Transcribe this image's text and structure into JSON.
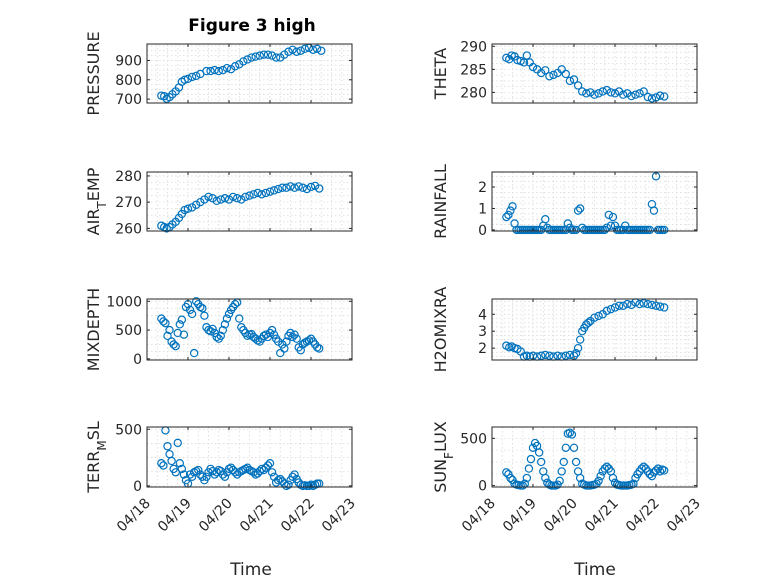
{
  "figure": {
    "title": "Figure 3 high",
    "xlabel": "Time"
  },
  "colors": {
    "marker": "#0072BD",
    "axis": "#262626",
    "grid": "#d9d9d9"
  },
  "chart_data": [
    {
      "type": "scatter",
      "ylabel": "PRESSURE",
      "xlim": [
        0,
        5
      ],
      "ylim": [
        680,
        985
      ],
      "yticks": [
        700,
        800,
        900
      ],
      "x": [
        0.35,
        0.42,
        0.48,
        0.55,
        0.62,
        0.7,
        0.78,
        0.85,
        0.92,
        1.0,
        1.1,
        1.2,
        1.3,
        1.45,
        1.55,
        1.65,
        1.75,
        1.85,
        1.95,
        2.05,
        2.15,
        2.25,
        2.35,
        2.45,
        2.55,
        2.65,
        2.75,
        2.85,
        2.95,
        3.05,
        3.15,
        3.25,
        3.35,
        3.45,
        3.55,
        3.65,
        3.75,
        3.85,
        3.95,
        4.05,
        4.15,
        4.25
      ],
      "y": [
        718,
        715,
        702,
        710,
        725,
        740,
        760,
        790,
        800,
        805,
        815,
        820,
        830,
        845,
        845,
        850,
        845,
        850,
        860,
        855,
        870,
        880,
        895,
        905,
        915,
        920,
        925,
        930,
        930,
        925,
        915,
        915,
        930,
        945,
        955,
        945,
        950,
        960,
        965,
        955,
        960,
        950
      ]
    },
    {
      "type": "scatter",
      "ylabel": "THETA",
      "xlim": [
        0,
        5
      ],
      "ylim": [
        277.7,
        290.5
      ],
      "yticks": [
        280,
        285,
        290
      ],
      "x": [
        0.35,
        0.42,
        0.48,
        0.55,
        0.62,
        0.7,
        0.78,
        0.85,
        0.92,
        1.0,
        1.1,
        1.2,
        1.3,
        1.4,
        1.5,
        1.6,
        1.7,
        1.8,
        1.9,
        2.0,
        2.1,
        2.2,
        2.3,
        2.4,
        2.5,
        2.6,
        2.7,
        2.8,
        2.9,
        3.0,
        3.1,
        3.2,
        3.3,
        3.4,
        3.5,
        3.6,
        3.7,
        3.8,
        3.9,
        4.0,
        4.1,
        4.2
      ],
      "y": [
        287.5,
        287.2,
        288.0,
        287.8,
        287.0,
        286.8,
        286.5,
        288.0,
        286.5,
        285.5,
        285.0,
        284.2,
        284.8,
        283.5,
        283.8,
        284.2,
        285.0,
        284.0,
        282.5,
        282.8,
        281.5,
        280.2,
        279.8,
        280.0,
        279.5,
        279.8,
        280.2,
        280.5,
        280.0,
        279.8,
        280.2,
        279.5,
        279.8,
        279.2,
        279.5,
        279.8,
        280.2,
        279.0,
        278.7,
        278.9,
        279.3,
        279.1
      ]
    },
    {
      "type": "scatter",
      "ylabel": "AIR_TEMP",
      "xlim": [
        0,
        5
      ],
      "ylim": [
        259,
        281.5
      ],
      "yticks": [
        260,
        270,
        280
      ],
      "x": [
        0.35,
        0.42,
        0.48,
        0.55,
        0.62,
        0.7,
        0.78,
        0.85,
        0.92,
        1.0,
        1.1,
        1.2,
        1.3,
        1.4,
        1.5,
        1.6,
        1.7,
        1.8,
        1.9,
        2.0,
        2.1,
        2.2,
        2.3,
        2.4,
        2.5,
        2.6,
        2.7,
        2.8,
        2.9,
        3.0,
        3.1,
        3.2,
        3.3,
        3.4,
        3.5,
        3.6,
        3.7,
        3.8,
        3.9,
        4.0,
        4.1,
        4.2
      ],
      "y": [
        261,
        260.5,
        260,
        260.5,
        261.5,
        262.5,
        264,
        265.5,
        267,
        267.5,
        268,
        269,
        270,
        271,
        272,
        271.5,
        270.5,
        271,
        271.5,
        271,
        272,
        271.5,
        271,
        272,
        272.5,
        273,
        273.5,
        273,
        273.5,
        274,
        274.5,
        275,
        275.5,
        275.5,
        276,
        275.5,
        276,
        275.5,
        275,
        275.8,
        276.2,
        275.2
      ]
    },
    {
      "type": "scatter",
      "ylabel": "RAINFALL",
      "xlim": [
        0,
        5
      ],
      "ylim": [
        -0.05,
        2.7
      ],
      "yticks": [
        0,
        1,
        2
      ],
      "x": [
        0.35,
        0.4,
        0.45,
        0.5,
        0.55,
        0.6,
        0.65,
        0.7,
        0.75,
        0.8,
        0.85,
        0.9,
        0.95,
        1.0,
        1.05,
        1.1,
        1.15,
        1.2,
        1.25,
        1.3,
        1.35,
        1.4,
        1.45,
        1.5,
        1.55,
        1.6,
        1.65,
        1.7,
        1.75,
        1.8,
        1.85,
        1.9,
        1.95,
        2.0,
        2.05,
        2.1,
        2.15,
        2.2,
        2.25,
        2.3,
        2.35,
        2.4,
        2.45,
        2.5,
        2.55,
        2.6,
        2.65,
        2.7,
        2.75,
        2.8,
        2.85,
        2.9,
        2.95,
        3.0,
        3.05,
        3.1,
        3.15,
        3.2,
        3.25,
        3.3,
        3.35,
        3.4,
        3.45,
        3.5,
        3.55,
        3.6,
        3.65,
        3.7,
        3.75,
        3.8,
        3.85,
        3.9,
        3.95,
        4.0,
        4.05,
        4.1,
        4.15,
        4.2
      ],
      "y": [
        0.6,
        0.7,
        0.9,
        1.1,
        0.3,
        0,
        0,
        0,
        0,
        0,
        0,
        0,
        0,
        0,
        0,
        0,
        0,
        0,
        0.2,
        0.5,
        0.1,
        0,
        0,
        0,
        0,
        0,
        0,
        0,
        0,
        0,
        0.3,
        0.1,
        0,
        0,
        0,
        0.9,
        1.0,
        0.1,
        0,
        0,
        0,
        0,
        0,
        0,
        0,
        0,
        0,
        0,
        0,
        0.1,
        0.7,
        0.2,
        0.6,
        0.2,
        0,
        0,
        0,
        0,
        0.2,
        0,
        0,
        0,
        0,
        0,
        0,
        0,
        0,
        0,
        0,
        0,
        0,
        1.2,
        0.9,
        2.5,
        0,
        0,
        0,
        0
      ]
    },
    {
      "type": "scatter",
      "ylabel": "MIXDEPTH",
      "xlim": [
        0,
        5
      ],
      "ylim": [
        -20,
        1040
      ],
      "yticks": [
        0,
        500,
        1000
      ],
      "x": [
        0.35,
        0.4,
        0.45,
        0.5,
        0.55,
        0.6,
        0.65,
        0.7,
        0.75,
        0.8,
        0.85,
        0.9,
        0.95,
        1.0,
        1.05,
        1.1,
        1.15,
        1.2,
        1.25,
        1.3,
        1.35,
        1.4,
        1.45,
        1.5,
        1.55,
        1.6,
        1.65,
        1.7,
        1.75,
        1.8,
        1.85,
        1.9,
        1.95,
        2.0,
        2.05,
        2.1,
        2.15,
        2.2,
        2.25,
        2.3,
        2.35,
        2.4,
        2.45,
        2.5,
        2.55,
        2.6,
        2.65,
        2.7,
        2.75,
        2.8,
        2.85,
        2.9,
        2.95,
        3.0,
        3.05,
        3.1,
        3.15,
        3.2,
        3.25,
        3.3,
        3.35,
        3.4,
        3.45,
        3.5,
        3.55,
        3.6,
        3.65,
        3.7,
        3.75,
        3.8,
        3.85,
        3.9,
        3.95,
        4.0,
        4.05,
        4.1,
        4.15,
        4.2
      ],
      "y": [
        700,
        650,
        620,
        400,
        500,
        300,
        250,
        220,
        450,
        600,
        680,
        420,
        900,
        950,
        850,
        780,
        100,
        1000,
        950,
        900,
        880,
        750,
        550,
        500,
        480,
        520,
        450,
        380,
        350,
        400,
        500,
        600,
        700,
        780,
        850,
        900,
        950,
        980,
        700,
        550,
        500,
        450,
        400,
        420,
        430,
        380,
        350,
        320,
        300,
        350,
        400,
        420,
        380,
        450,
        500,
        420,
        350,
        300,
        100,
        250,
        180,
        300,
        400,
        450,
        380,
        420,
        350,
        200,
        150,
        250,
        280,
        300,
        320,
        350,
        300,
        250,
        200,
        180
      ]
    },
    {
      "type": "scatter",
      "ylabel": "H2OMIXRA",
      "xlim": [
        0,
        5
      ],
      "ylim": [
        1.3,
        4.9
      ],
      "yticks": [
        2,
        3,
        4
      ],
      "x": [
        0.35,
        0.42,
        0.48,
        0.55,
        0.62,
        0.7,
        0.78,
        0.85,
        0.92,
        1.0,
        1.1,
        1.2,
        1.3,
        1.4,
        1.5,
        1.6,
        1.7,
        1.8,
        1.9,
        2.0,
        2.05,
        2.1,
        2.15,
        2.2,
        2.25,
        2.3,
        2.35,
        2.4,
        2.5,
        2.6,
        2.7,
        2.8,
        2.9,
        3.0,
        3.1,
        3.2,
        3.3,
        3.4,
        3.5,
        3.6,
        3.7,
        3.8,
        3.9,
        4.0,
        4.1,
        4.2
      ],
      "y": [
        2.15,
        2.05,
        2.1,
        2.0,
        1.95,
        1.8,
        1.5,
        1.55,
        1.5,
        1.55,
        1.5,
        1.55,
        1.6,
        1.55,
        1.5,
        1.55,
        1.5,
        1.55,
        1.6,
        1.55,
        1.7,
        2.0,
        2.5,
        3.0,
        3.2,
        3.4,
        3.5,
        3.6,
        3.8,
        3.9,
        4.0,
        4.2,
        4.3,
        4.4,
        4.5,
        4.5,
        4.6,
        4.55,
        4.7,
        4.6,
        4.65,
        4.6,
        4.55,
        4.5,
        4.45,
        4.4
      ]
    },
    {
      "type": "scatter",
      "ylabel": "TERR_MSL",
      "xlim": [
        0,
        5
      ],
      "ylim": [
        -10,
        520
      ],
      "yticks": [
        0,
        500
      ],
      "x": [
        0.35,
        0.4,
        0.45,
        0.5,
        0.55,
        0.6,
        0.65,
        0.7,
        0.75,
        0.8,
        0.85,
        0.9,
        0.95,
        1.0,
        1.05,
        1.1,
        1.15,
        1.2,
        1.25,
        1.3,
        1.35,
        1.4,
        1.45,
        1.5,
        1.55,
        1.6,
        1.65,
        1.7,
        1.75,
        1.8,
        1.85,
        1.9,
        1.95,
        2.0,
        2.05,
        2.1,
        2.15,
        2.2,
        2.25,
        2.3,
        2.35,
        2.4,
        2.45,
        2.5,
        2.55,
        2.6,
        2.65,
        2.7,
        2.75,
        2.8,
        2.85,
        2.9,
        2.95,
        3.0,
        3.05,
        3.1,
        3.15,
        3.2,
        3.25,
        3.3,
        3.35,
        3.4,
        3.45,
        3.5,
        3.55,
        3.6,
        3.65,
        3.7,
        3.75,
        3.8,
        3.85,
        3.9,
        3.95,
        4.0,
        4.05,
        4.1,
        4.15,
        4.2
      ],
      "y": [
        200,
        180,
        490,
        350,
        280,
        220,
        150,
        120,
        380,
        200,
        150,
        100,
        50,
        20,
        100,
        80,
        120,
        130,
        140,
        100,
        80,
        50,
        80,
        120,
        150,
        130,
        100,
        120,
        140,
        130,
        100,
        80,
        120,
        150,
        160,
        140,
        120,
        100,
        120,
        130,
        140,
        150,
        160,
        140,
        130,
        120,
        100,
        110,
        130,
        150,
        140,
        160,
        180,
        200,
        120,
        80,
        30,
        50,
        60,
        40,
        20,
        0,
        10,
        50,
        80,
        100,
        60,
        30,
        10,
        0,
        5,
        0,
        0,
        10,
        0,
        10,
        20,
        20
      ]
    },
    {
      "type": "scatter",
      "ylabel": "SUN_FLUX",
      "xlim": [
        0,
        5
      ],
      "ylim": [
        -15,
        620
      ],
      "yticks": [
        0,
        500
      ],
      "x": [
        0.35,
        0.4,
        0.45,
        0.5,
        0.55,
        0.6,
        0.65,
        0.7,
        0.75,
        0.8,
        0.85,
        0.9,
        0.95,
        1.0,
        1.05,
        1.1,
        1.15,
        1.2,
        1.25,
        1.3,
        1.35,
        1.4,
        1.45,
        1.5,
        1.55,
        1.6,
        1.65,
        1.7,
        1.75,
        1.8,
        1.85,
        1.9,
        1.95,
        2.0,
        2.05,
        2.1,
        2.15,
        2.2,
        2.25,
        2.3,
        2.35,
        2.4,
        2.45,
        2.5,
        2.55,
        2.6,
        2.65,
        2.7,
        2.75,
        2.8,
        2.85,
        2.9,
        2.95,
        3.0,
        3.05,
        3.1,
        3.15,
        3.2,
        3.25,
        3.3,
        3.35,
        3.4,
        3.45,
        3.5,
        3.55,
        3.6,
        3.65,
        3.7,
        3.75,
        3.8,
        3.85,
        3.9,
        3.95,
        4.0,
        4.05,
        4.1,
        4.15,
        4.2
      ],
      "y": [
        140,
        120,
        80,
        60,
        20,
        10,
        5,
        0,
        0,
        20,
        80,
        180,
        280,
        400,
        450,
        420,
        350,
        250,
        150,
        80,
        30,
        10,
        0,
        0,
        0,
        10,
        50,
        150,
        250,
        400,
        550,
        560,
        540,
        400,
        250,
        150,
        80,
        20,
        10,
        0,
        0,
        0,
        5,
        10,
        20,
        50,
        100,
        150,
        180,
        200,
        180,
        150,
        80,
        30,
        10,
        5,
        0,
        0,
        0,
        0,
        5,
        10,
        20,
        80,
        120,
        150,
        180,
        200,
        180,
        150,
        120,
        100,
        140,
        160,
        180,
        150,
        170,
        160
      ]
    }
  ],
  "xaxis": {
    "ticks": [
      0,
      1,
      2,
      3,
      4,
      5
    ],
    "ticklabels": [
      "04/18",
      "04/19",
      "04/20",
      "04/21",
      "04/22",
      "04/23"
    ]
  }
}
